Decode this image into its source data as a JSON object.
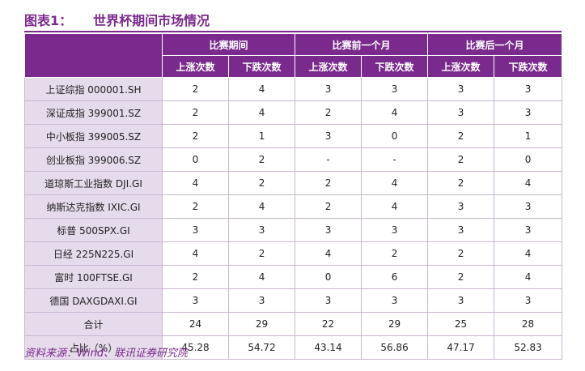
{
  "title": "图表1：",
  "subtitle": "世界杯期间市场情况",
  "group_headers": [
    "比赛期间",
    "比赛前一个月",
    "比赛后一个月"
  ],
  "sub_headers": [
    "上涨次数",
    "下跌次数",
    "上涨次数",
    "下跌次数",
    "上涨次数",
    "下跌次数"
  ],
  "rows": [
    {
      "label": "上证综指 000001.SH",
      "values": [
        "2",
        "4",
        "3",
        "3",
        "3",
        "3"
      ]
    },
    {
      "label": "深证成指 399001.SZ",
      "values": [
        "2",
        "4",
        "2",
        "4",
        "3",
        "3"
      ]
    },
    {
      "label": "中小板指 399005.SZ",
      "values": [
        "2",
        "1",
        "3",
        "0",
        "2",
        "1"
      ]
    },
    {
      "label": "创业板指 399006.SZ",
      "values": [
        "0",
        "2",
        "-",
        "-",
        "2",
        "0"
      ]
    },
    {
      "label": "道琼斯工业指数 DJI.GI",
      "values": [
        "4",
        "2",
        "2",
        "4",
        "2",
        "4"
      ]
    },
    {
      "label": "纳斯达克指数 IXIC.GI",
      "values": [
        "2",
        "4",
        "2",
        "4",
        "3",
        "3"
      ]
    },
    {
      "label": "标普 500SPX.GI",
      "values": [
        "3",
        "3",
        "3",
        "3",
        "3",
        "3"
      ]
    },
    {
      "label": "日经 225N225.GI",
      "values": [
        "4",
        "2",
        "4",
        "2",
        "2",
        "4"
      ]
    },
    {
      "label": "富时 100FTSE.GI",
      "values": [
        "2",
        "4",
        "0",
        "6",
        "2",
        "4"
      ]
    },
    {
      "label": "德国 DAXGDAXI.GI",
      "values": [
        "3",
        "3",
        "3",
        "3",
        "3",
        "3"
      ]
    },
    {
      "label": "合计",
      "values": [
        "24",
        "29",
        "22",
        "29",
        "25",
        "28"
      ]
    },
    {
      "label": "占比（%）",
      "values": [
        "45.28",
        "54.72",
        "43.14",
        "56.86",
        "47.17",
        "52.83"
      ]
    }
  ],
  "source": "资料来源：Wind、联讯证券研究院",
  "colors": {
    "accent": "#7a2a8c",
    "label_bg": "#e6dbeb",
    "border": "#c9b6d2"
  }
}
